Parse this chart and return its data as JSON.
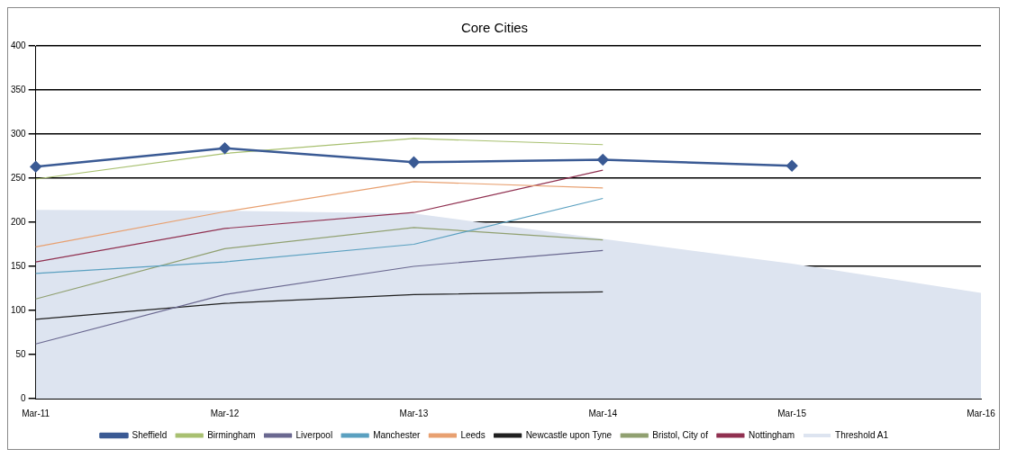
{
  "chart_data": {
    "type": "line",
    "title": "Core Cities",
    "categories": [
      "Mar-11",
      "Mar-12",
      "Mar-13",
      "Mar-14",
      "Mar-15",
      "Mar-16"
    ],
    "series": [
      {
        "name": "Threshold A1",
        "type": "area",
        "color": "#dde4f0",
        "values": [
          214,
          213,
          210,
          181,
          153,
          120
        ]
      },
      {
        "name": "Sheffield",
        "color": "#3a5a94",
        "marker": "diamond",
        "values": [
          263,
          284,
          268,
          271,
          264,
          null
        ]
      },
      {
        "name": "Birmingham",
        "color": "#a8c070",
        "values": [
          249,
          278,
          295,
          288,
          null,
          null
        ]
      },
      {
        "name": "Liverpool",
        "color": "#6a6890",
        "values": [
          62,
          118,
          150,
          168,
          null,
          null
        ]
      },
      {
        "name": "Manchester",
        "color": "#5aa0c0",
        "values": [
          142,
          155,
          175,
          227,
          null,
          null
        ]
      },
      {
        "name": "Leeds",
        "color": "#e8a070",
        "values": [
          172,
          212,
          246,
          239,
          null,
          null
        ]
      },
      {
        "name": "Newcastle upon Tyne",
        "color": "#202020",
        "values": [
          90,
          108,
          118,
          121,
          null,
          null
        ]
      },
      {
        "name": "Bristol, City of",
        "color": "#90a070",
        "values": [
          113,
          170,
          194,
          180,
          null,
          null
        ]
      },
      {
        "name": "Nottingham",
        "color": "#903050",
        "values": [
          155,
          193,
          211,
          259,
          null,
          null
        ]
      }
    ],
    "ylim": [
      0,
      400
    ],
    "yticks": [
      0,
      50,
      100,
      150,
      200,
      250,
      300,
      350,
      400
    ],
    "grid": "y",
    "legend": "bottom",
    "marker": "none"
  }
}
